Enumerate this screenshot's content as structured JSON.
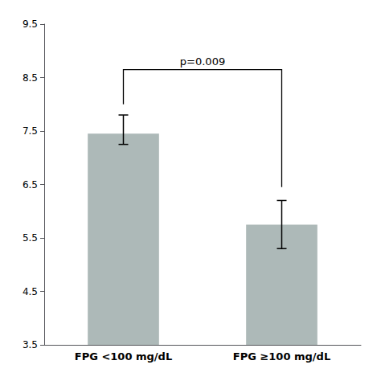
{
  "chart_data": {
    "type": "bar",
    "categories": [
      "FPG <100 mg/dL",
      "FPG ≥100 mg/dL"
    ],
    "values": [
      7.45,
      5.75
    ],
    "errors_upper": [
      0.35,
      0.45
    ],
    "errors_lower": [
      0.2,
      0.45
    ],
    "color": "#adb9b8",
    "ylim": [
      3.5,
      9.5
    ],
    "yticks": [
      3.5,
      4.5,
      5.5,
      6.5,
      7.5,
      8.5,
      9.5
    ],
    "grid": false,
    "annotations": [
      {
        "text": "p=0.009",
        "y": 8.65,
        "bracket_ends": [
          8.0,
          6.45
        ]
      }
    ]
  }
}
